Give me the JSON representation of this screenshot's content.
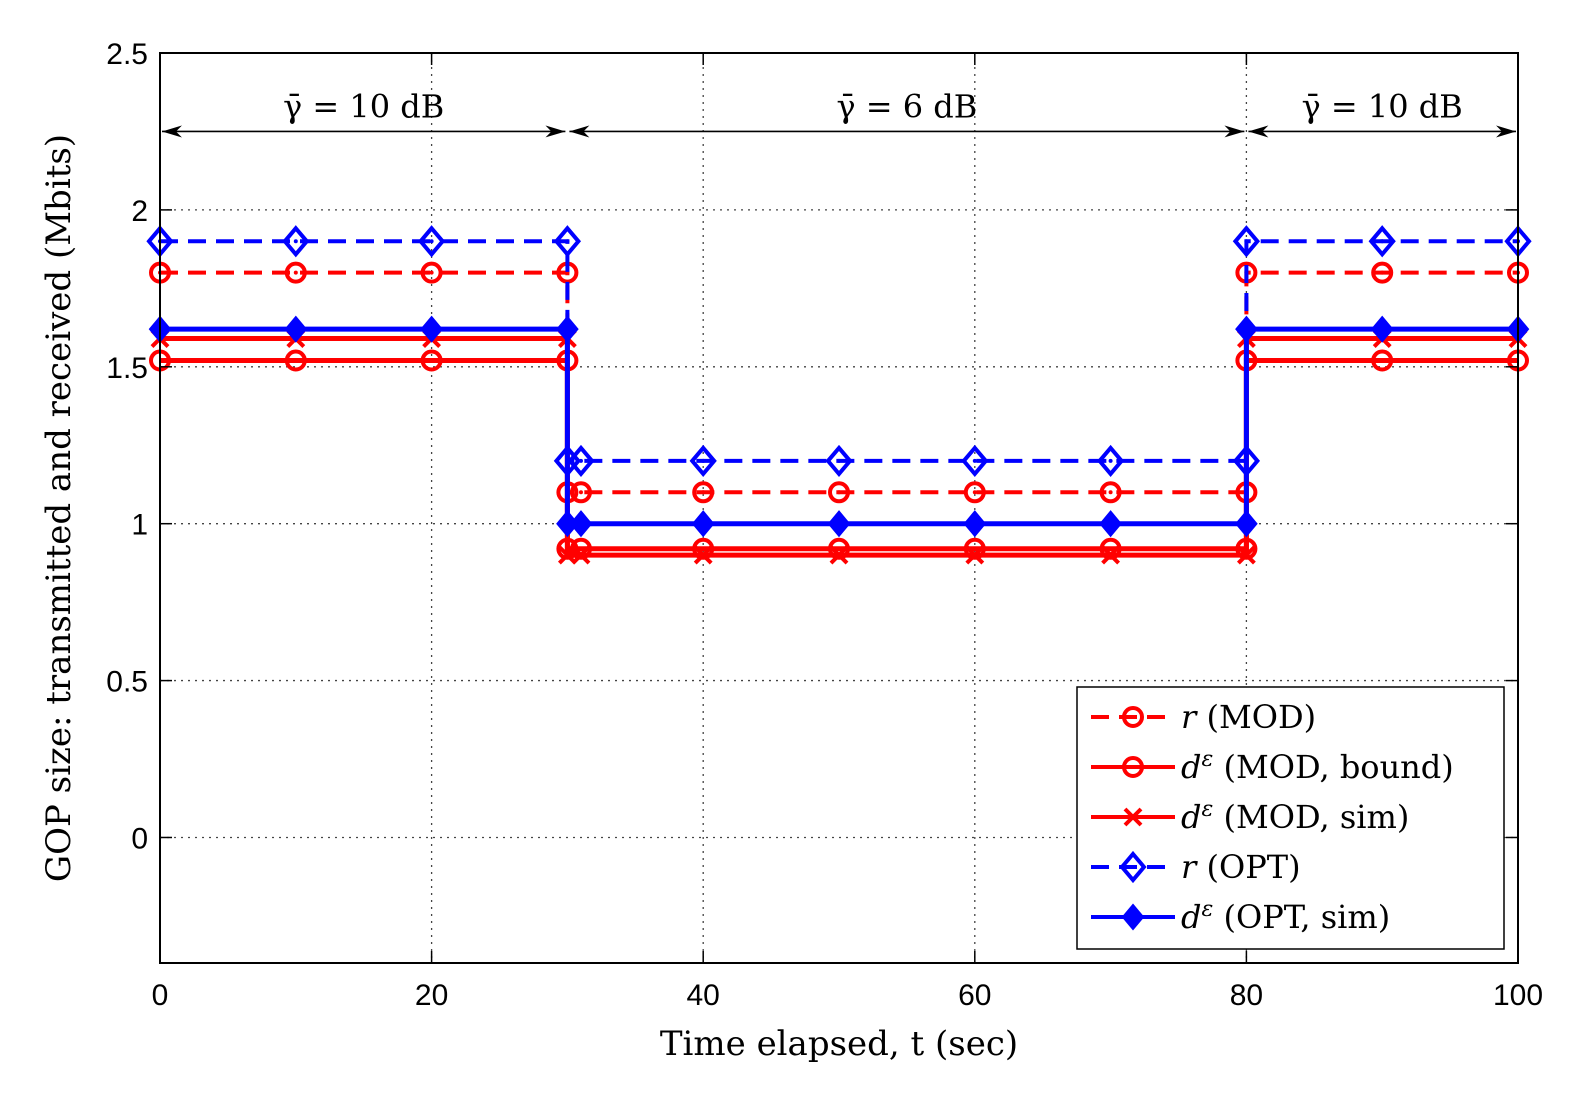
{
  "chart_data": {
    "type": "line",
    "xlabel": "Time elapsed, t (sec)",
    "ylabel": "GOP size: transmitted and received (Mbits)",
    "xlim": [
      0,
      100
    ],
    "ylim": [
      -0.4,
      2.5
    ],
    "xticks": [
      0,
      20,
      40,
      60,
      80,
      100
    ],
    "yticks": [
      0,
      0.5,
      1,
      1.5,
      2,
      2.5
    ],
    "xtick_labels": [
      "0",
      "20",
      "40",
      "60",
      "80",
      "100"
    ],
    "ytick_labels": [
      "0",
      "0.5",
      "1",
      "1.5",
      "2",
      "2.5"
    ],
    "grid": true,
    "legend_position": "bottom-right",
    "annotations": [
      {
        "text": "γ̄ = 10 dB",
        "x_start": 0,
        "x_end": 30,
        "y": 2.25
      },
      {
        "text": "γ̄ = 6 dB",
        "x_start": 30,
        "x_end": 80,
        "y": 2.25
      },
      {
        "text": "γ̄ = 10 dB",
        "x_start": 80,
        "x_end": 100,
        "y": 2.25
      }
    ],
    "series": [
      {
        "name": "r (MOD)",
        "label_sym": "r",
        "label_rest": "(MOD)",
        "color": "#ff0000",
        "dash": true,
        "marker": "circle-dot",
        "x": [
          0,
          10,
          20,
          30,
          30,
          31,
          40,
          50,
          60,
          70,
          80,
          80,
          90,
          100
        ],
        "y": [
          1.8,
          1.8,
          1.8,
          1.8,
          1.1,
          1.1,
          1.1,
          1.1,
          1.1,
          1.1,
          1.1,
          1.8,
          1.8,
          1.8
        ]
      },
      {
        "name": "dε (MOD, bound)",
        "label_sym": "d",
        "label_sup": "ε",
        "label_rest": "(MOD, bound)",
        "color": "#ff0000",
        "dash": false,
        "marker": "circle",
        "x": [
          0,
          10,
          20,
          30,
          30,
          31,
          40,
          50,
          60,
          70,
          80,
          80,
          90,
          100
        ],
        "y": [
          1.52,
          1.52,
          1.52,
          1.52,
          0.92,
          0.92,
          0.92,
          0.92,
          0.92,
          0.92,
          0.92,
          1.52,
          1.52,
          1.52
        ]
      },
      {
        "name": "dε (MOD, sim)",
        "label_sym": "d",
        "label_sup": "ε",
        "label_rest": "(MOD, sim)",
        "color": "#ff0000",
        "dash": false,
        "marker": "x",
        "x": [
          0,
          10,
          20,
          30,
          30,
          31,
          40,
          50,
          60,
          70,
          80,
          80,
          90,
          100
        ],
        "y": [
          1.59,
          1.59,
          1.59,
          1.59,
          0.9,
          0.9,
          0.9,
          0.9,
          0.9,
          0.9,
          0.9,
          1.59,
          1.59,
          1.59
        ]
      },
      {
        "name": "r (OPT)",
        "label_sym": "r",
        "label_rest": "(OPT)",
        "color": "#0000ff",
        "dash": true,
        "marker": "diamond-dot",
        "x": [
          0,
          10,
          20,
          30,
          30,
          31,
          40,
          50,
          60,
          70,
          80,
          80,
          90,
          100
        ],
        "y": [
          1.9,
          1.9,
          1.9,
          1.9,
          1.2,
          1.2,
          1.2,
          1.2,
          1.2,
          1.2,
          1.2,
          1.9,
          1.9,
          1.9
        ]
      },
      {
        "name": "dε (OPT, sim)",
        "label_sym": "d",
        "label_sup": "ε",
        "label_rest": "(OPT, sim)",
        "color": "#0000ff",
        "dash": false,
        "marker": "diamond-fill",
        "x": [
          0,
          10,
          20,
          30,
          30,
          31,
          40,
          50,
          60,
          70,
          80,
          80,
          90,
          100
        ],
        "y": [
          1.62,
          1.62,
          1.62,
          1.62,
          1.0,
          1.0,
          1.0,
          1.0,
          1.0,
          1.0,
          1.0,
          1.62,
          1.62,
          1.62
        ]
      }
    ]
  }
}
